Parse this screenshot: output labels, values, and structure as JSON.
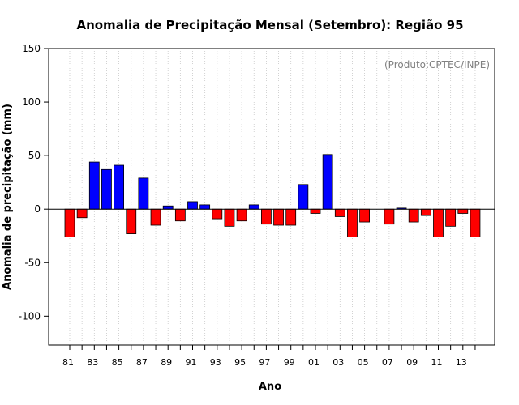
{
  "chart_data": {
    "type": "bar",
    "title": "Anomalia de Precipitação Mensal (Setembro): Região 95",
    "xlabel": "Ano",
    "ylabel": "Anomalia de precipitação (mm)",
    "credit": "(Produto:CPTEC/INPE)",
    "ylim": [
      -127,
      150
    ],
    "y_ticks": [
      -100,
      -50,
      0,
      50,
      100,
      150
    ],
    "grid": "vertical dotted",
    "categories": [
      "81",
      "82",
      "83",
      "84",
      "85",
      "86",
      "87",
      "88",
      "89",
      "90",
      "91",
      "92",
      "93",
      "94",
      "95",
      "96",
      "97",
      "98",
      "99",
      "00",
      "01",
      "02",
      "03",
      "04",
      "05",
      "06",
      "07",
      "08",
      "09",
      "10",
      "11",
      "12",
      "13",
      "14"
    ],
    "x_tick_labels": [
      "81",
      "83",
      "85",
      "87",
      "89",
      "91",
      "93",
      "95",
      "97",
      "99",
      "01",
      "03",
      "05",
      "07",
      "09",
      "11",
      "13"
    ],
    "values": [
      -26,
      -8,
      44,
      37,
      41,
      -23,
      29,
      -15,
      3,
      -11,
      7,
      4,
      -9,
      -16,
      -11,
      4,
      -14,
      -15,
      -15,
      23,
      -4,
      51,
      -7,
      -26,
      -12,
      0,
      -14,
      1,
      -12,
      -6,
      -26,
      -16,
      -4,
      -26
    ],
    "positive_color": "#0000ff",
    "negative_color": "#ff0000"
  }
}
